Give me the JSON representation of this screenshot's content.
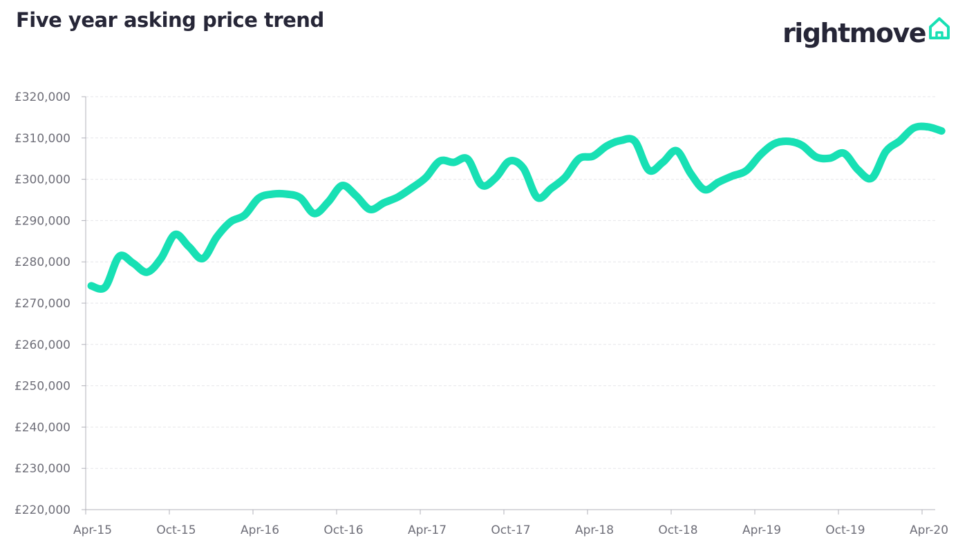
{
  "header": {
    "title": "Five year asking price trend",
    "brand": "rightmove"
  },
  "colors": {
    "line": "#18e0b4",
    "brand_text": "#262637",
    "brand_icon": "#18e0b4",
    "axis": "#b0b0b8",
    "grid": "#e6e6ea",
    "tick_text": "#6e6e78"
  },
  "icons": {
    "brand_mark": "house-outline-icon"
  },
  "chart_data": {
    "type": "line",
    "title": "Five year asking price trend",
    "xlabel": "",
    "ylabel": "",
    "ylim": [
      220000,
      320000
    ],
    "y_ticks": [
      220000,
      230000,
      240000,
      250000,
      260000,
      270000,
      280000,
      290000,
      300000,
      310000,
      320000
    ],
    "y_tick_labels": [
      "£220,000",
      "£230,000",
      "£240,000",
      "£250,000",
      "£260,000",
      "£270,000",
      "£280,000",
      "£290,000",
      "£300,000",
      "£310,000",
      "£320,000"
    ],
    "x_tick_labels": [
      "Apr-15",
      "Oct-15",
      "Apr-16",
      "Oct-16",
      "Apr-17",
      "Oct-17",
      "Apr-18",
      "Oct-18",
      "Apr-19",
      "Oct-19",
      "Apr-20"
    ],
    "grid": "horizontal dashed",
    "legend": "none",
    "categories": [
      "Apr-15",
      "May-15",
      "Jun-15",
      "Jul-15",
      "Aug-15",
      "Sep-15",
      "Oct-15",
      "Nov-15",
      "Dec-15",
      "Jan-16",
      "Feb-16",
      "Mar-16",
      "Apr-16",
      "May-16",
      "Jun-16",
      "Jul-16",
      "Aug-16",
      "Sep-16",
      "Oct-16",
      "Nov-16",
      "Dec-16",
      "Jan-17",
      "Feb-17",
      "Mar-17",
      "Apr-17",
      "May-17",
      "Jun-17",
      "Jul-17",
      "Aug-17",
      "Sep-17",
      "Oct-17",
      "Nov-17",
      "Dec-17",
      "Jan-18",
      "Feb-18",
      "Mar-18",
      "Apr-18",
      "May-18",
      "Jun-18",
      "Jul-18",
      "Aug-18",
      "Sep-18",
      "Oct-18",
      "Nov-18",
      "Dec-18",
      "Jan-19",
      "Feb-19",
      "Mar-19",
      "Apr-19",
      "May-19",
      "Jun-19",
      "Jul-19",
      "Aug-19",
      "Sep-19",
      "Oct-19",
      "Nov-19",
      "Dec-19",
      "Jan-20",
      "Feb-20",
      "Mar-20",
      "Apr-20",
      "May-20"
    ],
    "series": [
      {
        "values": [
          274200,
          273900,
          281300,
          279700,
          277500,
          280800,
          286600,
          283700,
          280800,
          286000,
          289700,
          291300,
          295400,
          296400,
          296400,
          295500,
          291700,
          294500,
          298500,
          296000,
          292700,
          294300,
          295700,
          297900,
          300400,
          304400,
          304100,
          304900,
          298600,
          300300,
          304400,
          302700,
          295600,
          297800,
          300500,
          305000,
          305600,
          308100,
          309400,
          309200,
          302200,
          304100,
          306900,
          301400,
          297500,
          299300,
          300800,
          302100,
          305900,
          308600,
          309200,
          308200,
          305400,
          305100,
          306300,
          302300,
          300300,
          306700,
          309300,
          312400,
          312700,
          311700
        ]
      }
    ]
  }
}
